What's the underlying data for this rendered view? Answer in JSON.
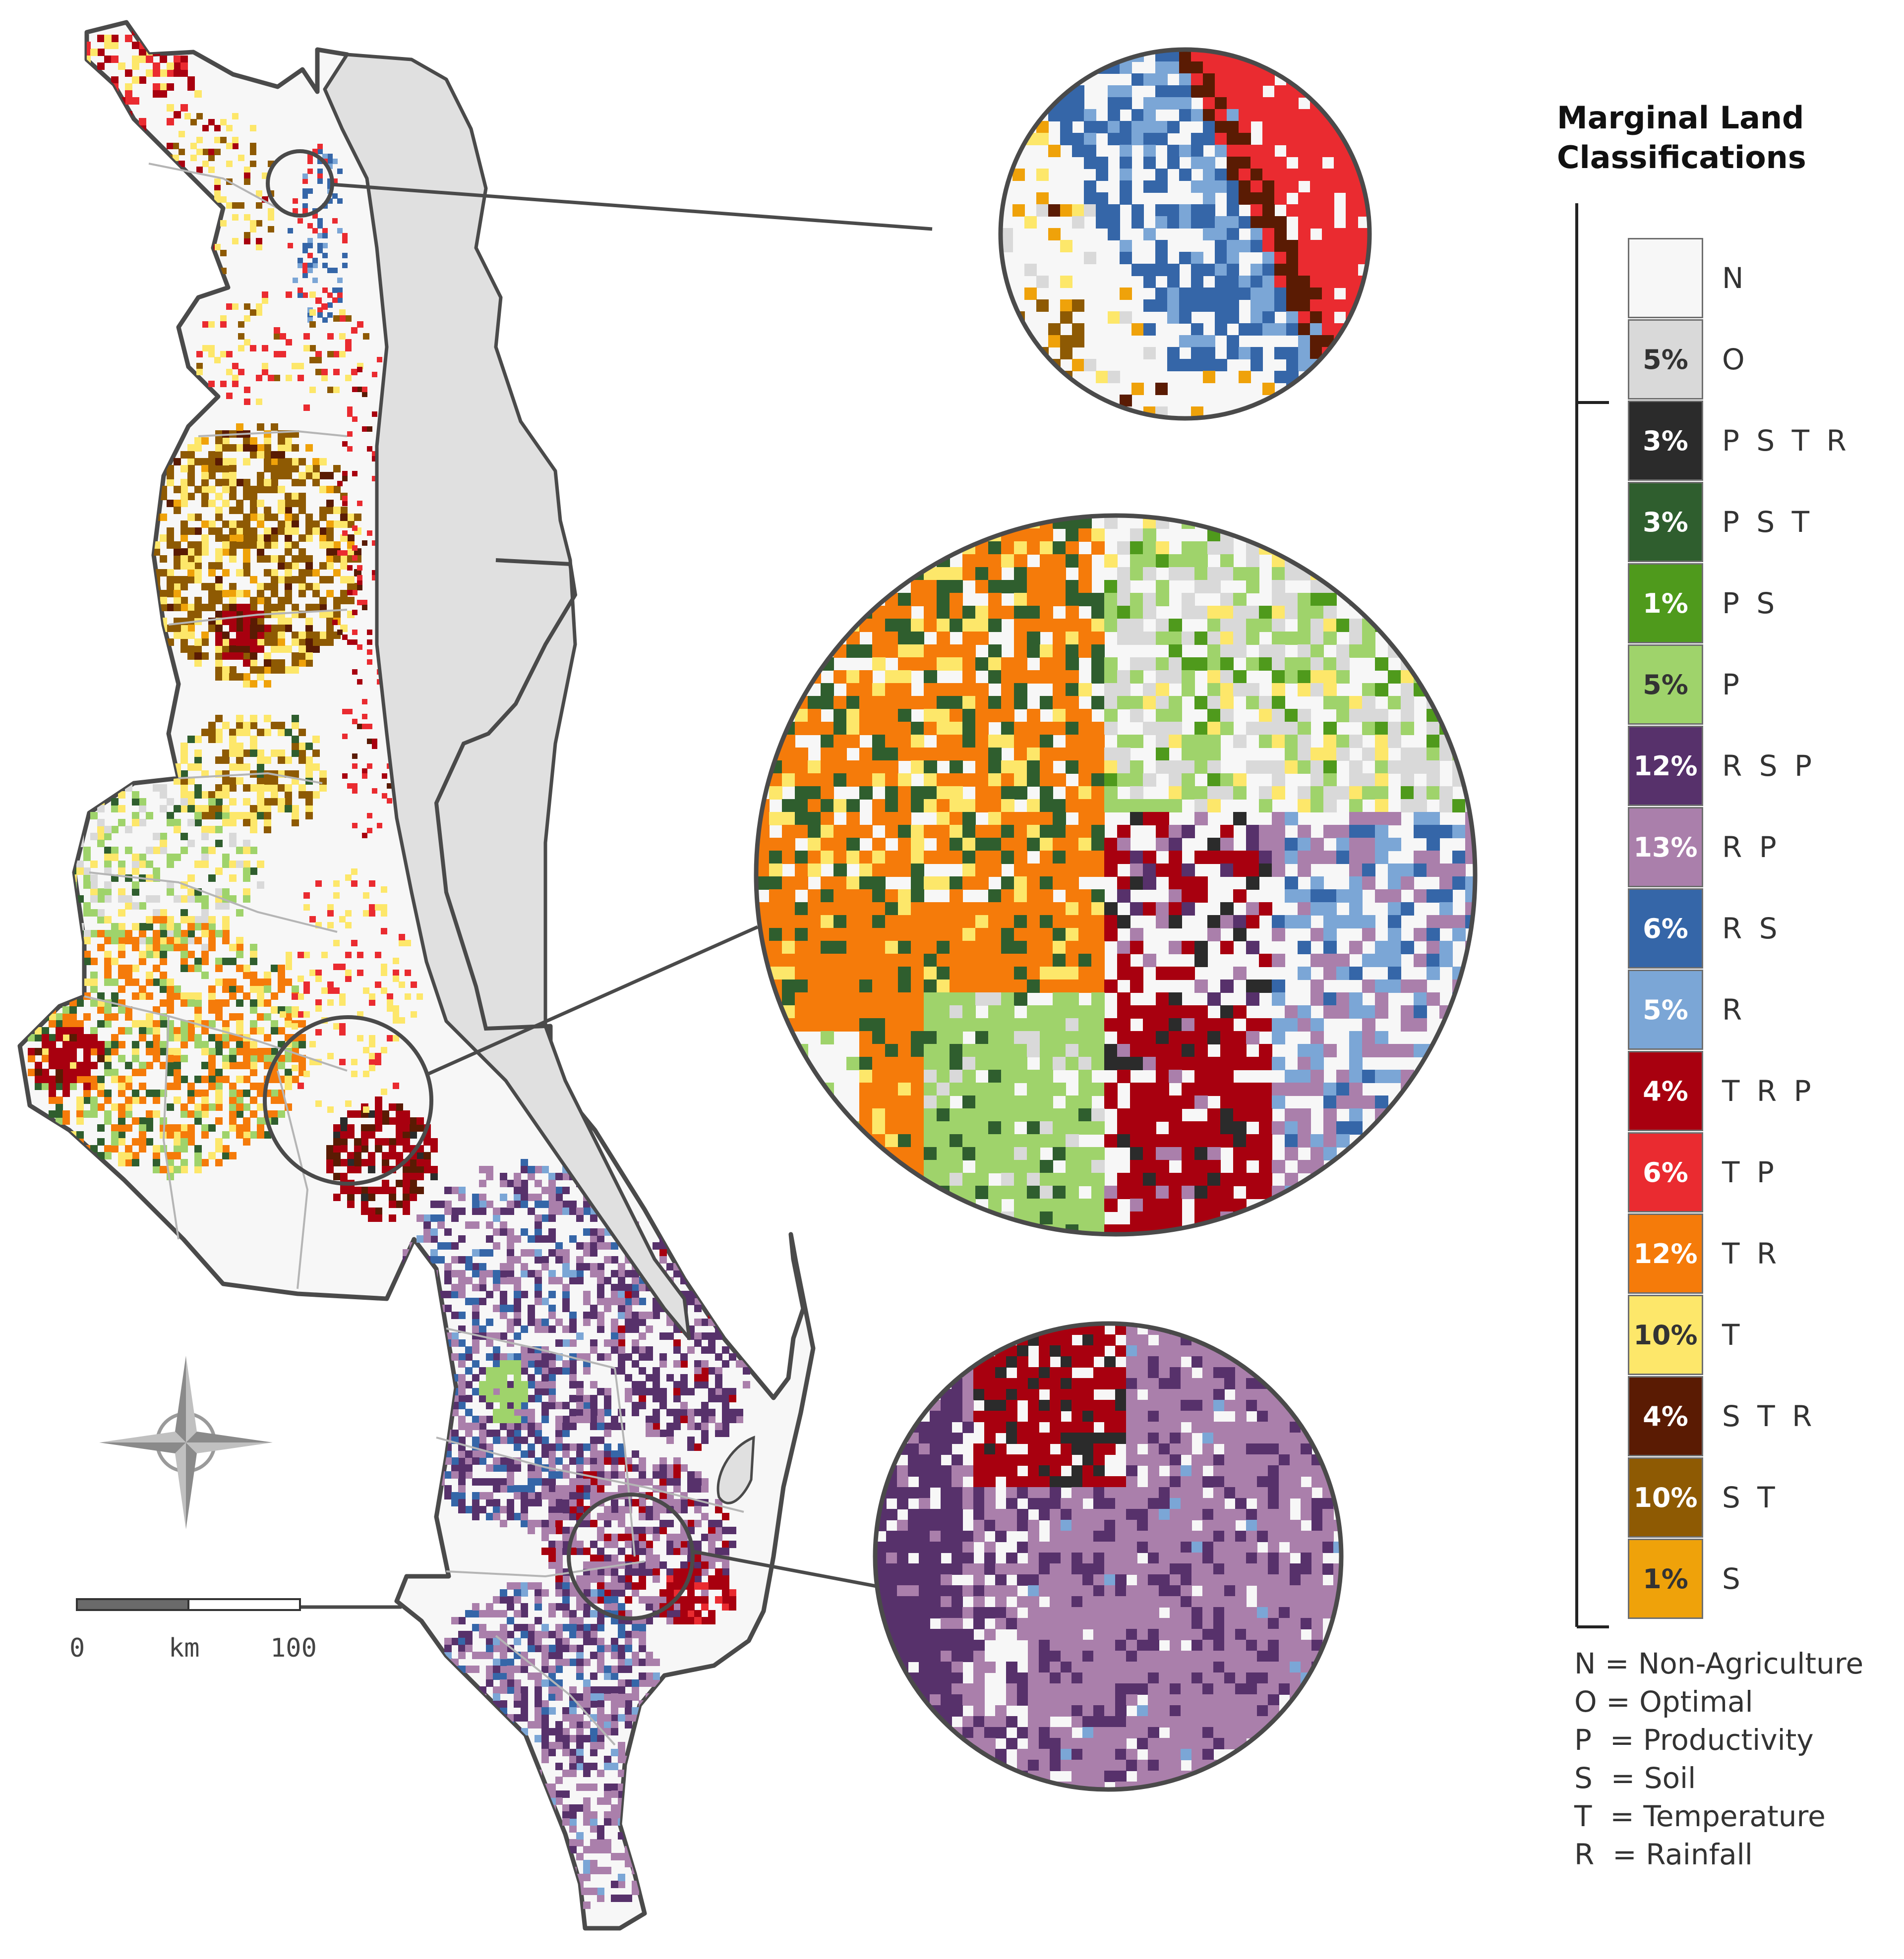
{
  "legend": {
    "title": "Marginal Land Classifications",
    "items": [
      {
        "code": "N",
        "pct": "",
        "color": "#f7f7f7",
        "text_color": "#ffffff"
      },
      {
        "code": "O",
        "pct": "5%",
        "color": "#d9d9d9",
        "text_color": "#333333"
      },
      {
        "code": "P S T R",
        "pct": "3%",
        "color": "#2b2b2b",
        "text_color": "#ffffff"
      },
      {
        "code": "P S T",
        "pct": "3%",
        "color": "#2f5e2e",
        "text_color": "#ffffff"
      },
      {
        "code": "P S",
        "pct": "1%",
        "color": "#4f9a1c",
        "text_color": "#ffffff"
      },
      {
        "code": "P",
        "pct": "5%",
        "color": "#9fd36b",
        "text_color": "#333333"
      },
      {
        "code": "R S P",
        "pct": "12%",
        "color": "#57316b",
        "text_color": "#ffffff"
      },
      {
        "code": "R P",
        "pct": "13%",
        "color": "#aa7fab",
        "text_color": "#ffffff"
      },
      {
        "code": "R S",
        "pct": "6%",
        "color": "#3566a8",
        "text_color": "#ffffff"
      },
      {
        "code": "R",
        "pct": "5%",
        "color": "#7ba6d6",
        "text_color": "#ffffff"
      },
      {
        "code": "T R P",
        "pct": "4%",
        "color": "#a8000f",
        "text_color": "#ffffff"
      },
      {
        "code": "T P",
        "pct": "6%",
        "color": "#ea2b30",
        "text_color": "#ffffff"
      },
      {
        "code": "T R",
        "pct": "12%",
        "color": "#f57b0a",
        "text_color": "#ffffff"
      },
      {
        "code": "T",
        "pct": "10%",
        "color": "#fde76a",
        "text_color": "#333333"
      },
      {
        "code": "S T R",
        "pct": "4%",
        "color": "#5a1b03",
        "text_color": "#ffffff"
      },
      {
        "code": "S T",
        "pct": "10%",
        "color": "#8e5a03",
        "text_color": "#ffffff"
      },
      {
        "code": "S",
        "pct": "1%",
        "color": "#efa20a",
        "text_color": "#333333"
      }
    ]
  },
  "key": [
    {
      "abbr": "N",
      "meaning": "Non-Agriculture"
    },
    {
      "abbr": "O",
      "meaning": "Optimal"
    },
    {
      "abbr": "P",
      "meaning": "Productivity"
    },
    {
      "abbr": "S",
      "meaning": "Soil"
    },
    {
      "abbr": "T",
      "meaning": "Temperature"
    },
    {
      "abbr": "R",
      "meaning": "Rainfall"
    }
  ],
  "scale_bar": {
    "start": "0",
    "unit": "km",
    "end": "100"
  },
  "colors": {
    "lake": "#e0e0e0",
    "land": "#f7f7f7",
    "outline": "#4a4a4a",
    "compass": "#9a9a9a"
  },
  "icons": {
    "compass": "compass-rose-icon"
  }
}
